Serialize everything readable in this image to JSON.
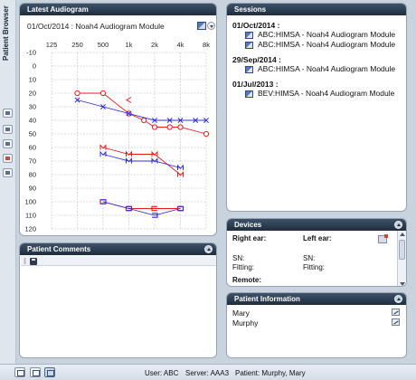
{
  "side_bar": {
    "label": "Patient Browser",
    "icons": [
      "patient-icon",
      "session-icon",
      "device-icon",
      "fitting-icon",
      "report-icon"
    ]
  },
  "audiogram_panel": {
    "title": "Latest Audiogram",
    "session_line": "01/Oct/2014 : Noah4 Audiogram Module",
    "chart_data": {
      "type": "line",
      "title": "",
      "xlabel": "",
      "ylabel": "",
      "x_ticks": [
        "125",
        "250",
        "500",
        "1k",
        "2k",
        "4k",
        "8k"
      ],
      "x_values": [
        125,
        250,
        500,
        1000,
        2000,
        4000,
        8000
      ],
      "x_scale": "log",
      "y_ticks": [
        "-10",
        "0",
        "10",
        "20",
        "30",
        "40",
        "50",
        "60",
        "70",
        "80",
        "90",
        "100",
        "110",
        "120"
      ],
      "ylim": [
        -10,
        120
      ],
      "y_inverted": true,
      "grid": true,
      "series": [
        {
          "color": "#e02020",
          "symbol": "O",
          "x": [
            250,
            500,
            1000,
            1500,
            2000,
            3000,
            4000,
            8000
          ],
          "values": [
            20,
            20,
            35,
            40,
            45,
            45,
            45,
            50
          ]
        },
        {
          "color": "#e02020",
          "symbol": "<",
          "x": [
            1000
          ],
          "values": [
            25
          ]
        },
        {
          "color": "#3030d0",
          "symbol": "X",
          "x": [
            250,
            500,
            1000,
            2000,
            3000,
            4000,
            6000,
            8000
          ],
          "values": [
            25,
            30,
            35,
            40,
            40,
            40,
            40,
            40
          ]
        },
        {
          "color": "#e02020",
          "symbol": "M",
          "x": [
            500,
            1000,
            2000,
            4000
          ],
          "values": [
            60,
            65,
            65,
            80
          ]
        },
        {
          "color": "#3030d0",
          "symbol": "M",
          "x": [
            500,
            1000,
            2000,
            4000
          ],
          "values": [
            65,
            70,
            70,
            75
          ]
        },
        {
          "color": "#e02020",
          "symbol": "⊏",
          "x": [
            500,
            1000,
            2000,
            4000
          ],
          "values": [
            100,
            105,
            105,
            105
          ]
        },
        {
          "color": "#3030d0",
          "symbol": "⊐",
          "x": [
            500,
            1000,
            2000,
            4000
          ],
          "values": [
            100,
            105,
            110,
            105
          ]
        }
      ]
    }
  },
  "sessions_panel": {
    "title": "Sessions",
    "groups": [
      {
        "date": "01/Oct/2014 :",
        "entries": [
          "ABC:HIMSA  - Noah4 Audiogram Module",
          "ABC:HIMSA  - Noah4 Audiogram Module"
        ]
      },
      {
        "date": "29/Sep/2014 :",
        "entries": [
          "ABC:HIMSA  - Noah4 Audiogram Module"
        ]
      },
      {
        "date": "01/Jul/2013 :",
        "entries": [
          "BEV:HIMSA - Noah4 Audiogram Module"
        ]
      }
    ]
  },
  "devices_panel": {
    "title": "Devices",
    "right_ear": "Right ear:",
    "left_ear": "Left ear:",
    "sn_right": "SN:",
    "fitting_right": "Fitting:",
    "sn_left": "SN:",
    "fitting_left": "Fitting:",
    "remote": "Remote:"
  },
  "patient_info_panel": {
    "title": "Patient Information",
    "first_name": "Mary",
    "last_name": "Murphy"
  },
  "comments_panel": {
    "title": "Patient Comments"
  },
  "status_bar": {
    "user": "User: ABC",
    "server": "Server: AAA3",
    "patient": "Patient: Murphy, Mary"
  }
}
